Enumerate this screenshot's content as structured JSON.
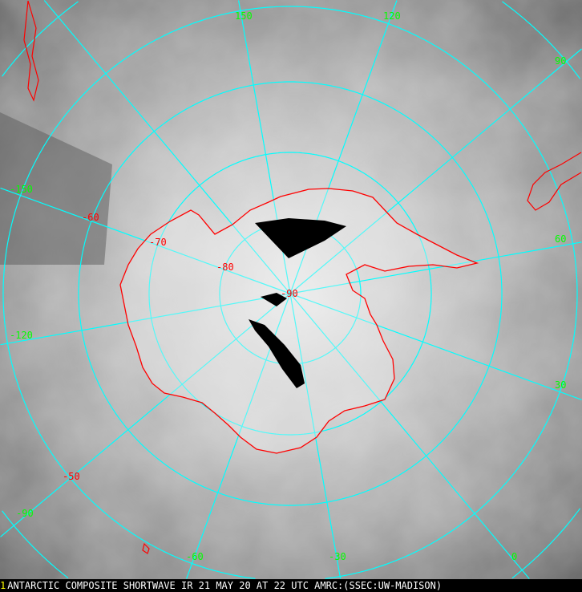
{
  "caption": {
    "marker": "1",
    "text": "ANTARCTIC COMPOSITE SHORTWAVE IR 21 MAY 20 AT 22 UTC AMRC:(SSEC:UW-MADISON)"
  },
  "colors": {
    "graticule": "#00ffff",
    "coastline": "#ff0000",
    "longitude_labels": "#00ff00",
    "latitude_labels": "#ff0000"
  },
  "longitude_labels": [
    "150",
    "120",
    "90",
    "60",
    "30",
    "0",
    "-30",
    "-60",
    "-90",
    "-120",
    "-150"
  ],
  "latitude_labels": [
    "-50",
    "-60",
    "-70",
    "-80",
    "-90"
  ]
}
